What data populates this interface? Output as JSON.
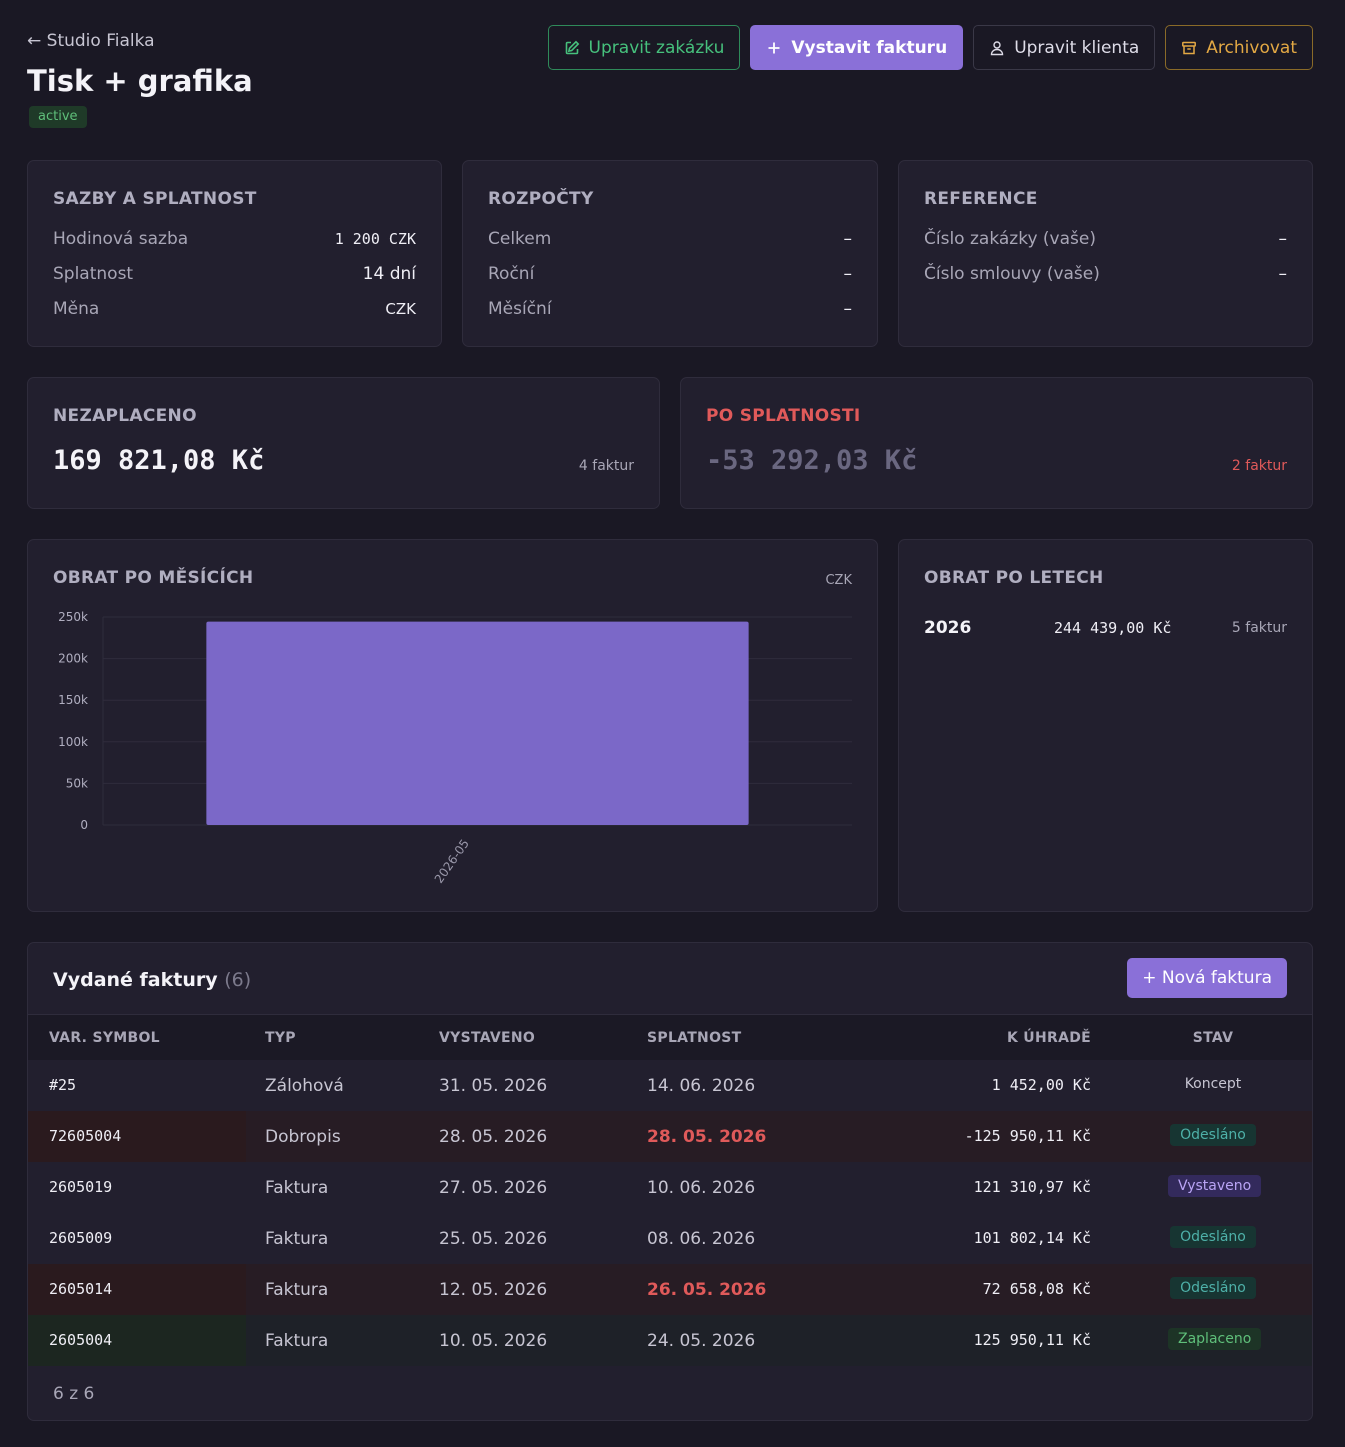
{
  "header": {
    "back_label": "← Studio Fialka",
    "title": "Tisk + grafika",
    "status": "active"
  },
  "actions": {
    "edit_job": "Upravit zakázku",
    "issue_invoice": "Vystavit fakturu",
    "edit_client": "Upravit klienta",
    "archive": "Archivovat"
  },
  "rates": {
    "heading": "SAZBY A SPLATNOST",
    "rows": [
      {
        "label": "Hodinová sazba",
        "value": "1 200 CZK"
      },
      {
        "label": "Splatnost",
        "value": "14 dní"
      },
      {
        "label": "Měna",
        "value": "CZK"
      }
    ]
  },
  "budgets": {
    "heading": "ROZPOČTY",
    "rows": [
      {
        "label": "Celkem",
        "value": "–"
      },
      {
        "label": "Roční",
        "value": "–"
      },
      {
        "label": "Měsíční",
        "value": "–"
      }
    ]
  },
  "references": {
    "heading": "REFERENCE",
    "rows": [
      {
        "label": "Číslo zakázky (vaše)",
        "value": "–"
      },
      {
        "label": "Číslo smlouvy (vaše)",
        "value": "–"
      }
    ]
  },
  "unpaid": {
    "heading": "NEZAPLACENO",
    "amount": "169 821,08 Kč",
    "count": "4 faktur"
  },
  "overdue": {
    "heading": "PO SPLATNOSTI",
    "amount": "-53 292,03 Kč",
    "count": "2 faktur"
  },
  "monthly": {
    "heading": "OBRAT PO MĚSÍCÍCH",
    "currency": "CZK"
  },
  "chart_data": {
    "type": "bar",
    "categories": [
      "2026-05"
    ],
    "values": [
      244439
    ],
    "title": "",
    "xlabel": "",
    "ylabel": "",
    "ylim": [
      0,
      250000
    ],
    "yticks": [
      "0",
      "50k",
      "100k",
      "150k",
      "200k",
      "250k"
    ],
    "ytick_values": [
      0,
      50000,
      100000,
      150000,
      200000,
      250000
    ],
    "grid": true,
    "colors": {
      "bar": "#7b68c8",
      "grid": "#2f2c3c"
    }
  },
  "yearly": {
    "heading": "OBRAT PO LETECH",
    "rows": [
      {
        "year": "2026",
        "amount": "244 439,00 Kč",
        "count": "5 faktur"
      }
    ]
  },
  "invoices": {
    "title": "Vydané faktury",
    "count": "(6)",
    "new_button": "+ Nová faktura",
    "columns": [
      "VAR. SYMBOL",
      "TYP",
      "VYSTAVENO",
      "SPLATNOST",
      "K ÚHRADĚ",
      "STAV"
    ],
    "rows": [
      {
        "vs": "#25",
        "typ": "Zálohová",
        "vystaveno": "31. 05. 2026",
        "splatnost": "14. 06. 2026",
        "amount": "1 452,00 Kč",
        "stav": "Koncept",
        "stav_kind": "koncept",
        "overdue": false,
        "tone": "normal"
      },
      {
        "vs": "72605004",
        "typ": "Dobropis",
        "vystaveno": "28. 05. 2026",
        "splatnost": "28. 05. 2026",
        "amount": "-125 950,11 Kč",
        "stav": "Odesláno",
        "stav_kind": "odeslano",
        "overdue": true,
        "tone": "overdue"
      },
      {
        "vs": "2605019",
        "typ": "Faktura",
        "vystaveno": "27. 05. 2026",
        "splatnost": "10. 06. 2026",
        "amount": "121 310,97 Kč",
        "stav": "Vystaveno",
        "stav_kind": "vystaveno",
        "overdue": false,
        "tone": "normal"
      },
      {
        "vs": "2605009",
        "typ": "Faktura",
        "vystaveno": "25. 05. 2026",
        "splatnost": "08. 06. 2026",
        "amount": "101 802,14 Kč",
        "stav": "Odesláno",
        "stav_kind": "odeslano",
        "overdue": false,
        "tone": "normal"
      },
      {
        "vs": "2605014",
        "typ": "Faktura",
        "vystaveno": "12. 05. 2026",
        "splatnost": "26. 05. 2026",
        "amount": "72 658,08 Kč",
        "stav": "Odesláno",
        "stav_kind": "odeslano",
        "overdue": true,
        "tone": "overdue"
      },
      {
        "vs": "2605004",
        "typ": "Faktura",
        "vystaveno": "10. 05. 2026",
        "splatnost": "24. 05. 2026",
        "amount": "125 950,11 Kč",
        "stav": "Zaplaceno",
        "stav_kind": "zaplaceno",
        "overdue": false,
        "tone": "paid"
      }
    ],
    "footer": "6 z 6"
  },
  "colors": {
    "background": "#1a1824",
    "card": "#221f2e",
    "accent": "#8a70d8",
    "overdue": "#e05a5a",
    "paid": "#5fbf7a"
  }
}
